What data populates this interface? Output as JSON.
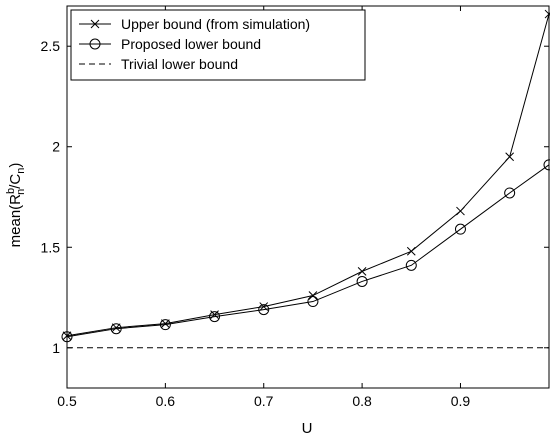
{
  "chart_data": {
    "type": "line",
    "xlabel": "U",
    "ylabel": "mean(R_n^b/C_n)",
    "xlim": [
      0.5,
      0.99
    ],
    "ylim": [
      0.8,
      2.7
    ],
    "x_ticks": [
      0.5,
      0.6,
      0.7,
      0.8,
      0.9
    ],
    "x_tick_labels": [
      "0.5",
      "0.6",
      "0.7",
      "0.8",
      "0.9"
    ],
    "y_ticks": [
      1,
      1.5,
      2,
      2.5
    ],
    "y_tick_labels": [
      "1",
      "1.5",
      "2",
      "2.5"
    ],
    "grid": false,
    "legend_position": "top-left",
    "series": [
      {
        "name": "Upper bound (from simulation)",
        "marker": "x",
        "line_style": "solid",
        "x": [
          0.5,
          0.55,
          0.6,
          0.65,
          0.7,
          0.75,
          0.8,
          0.85,
          0.9,
          0.95,
          0.99
        ],
        "y": [
          1.06,
          1.1,
          1.12,
          1.165,
          1.205,
          1.26,
          1.38,
          1.48,
          1.68,
          1.95,
          2.66
        ]
      },
      {
        "name": "Proposed lower bound",
        "marker": "o",
        "line_style": "solid",
        "x": [
          0.5,
          0.55,
          0.6,
          0.65,
          0.7,
          0.75,
          0.8,
          0.85,
          0.9,
          0.95,
          0.99
        ],
        "y": [
          1.055,
          1.095,
          1.115,
          1.155,
          1.19,
          1.23,
          1.33,
          1.41,
          1.59,
          1.77,
          1.91
        ]
      },
      {
        "name": "Trivial lower bound",
        "marker": "none",
        "line_style": "dashed",
        "x": [
          0.5,
          0.99
        ],
        "y": [
          1.0,
          1.0
        ]
      }
    ]
  }
}
